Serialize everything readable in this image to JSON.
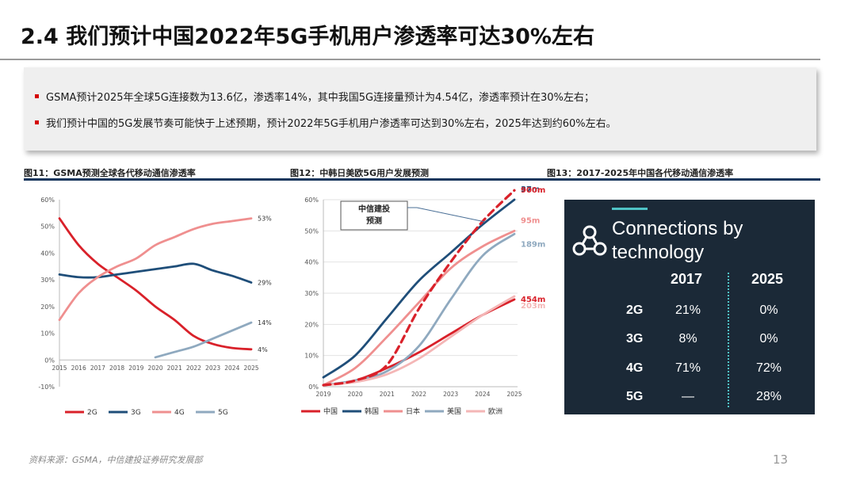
{
  "slide": {
    "title": "2.4  我们预计中国2022年5G手机用户渗透率可达30%左右",
    "bullets": [
      "GSMA预计2025年全球5G连接数为13.6亿，渗透率14%，其中我国5G连接量预计为4.54亿，渗透率预计在30%左右；",
      "我们预计中国的5G发展节奏可能快于上述预期，预计2022年5G手机用户渗透率可达到30%左右，2025年达到约60%左右。"
    ],
    "footer": "资料来源：GSMA，中信建投证券研究发展部",
    "page_number": "13"
  },
  "figures": {
    "fig11_title": "图11：GSMA预测全球各代移动通信渗透率",
    "fig12_title": "图12：中韩日美欧5G用户发展预测",
    "fig13_title": "图13：2017-2025年中国各代移动通信渗透率"
  },
  "chart_data": [
    {
      "type": "line",
      "x": [
        "2015",
        "2016",
        "2017",
        "2018",
        "2019",
        "2020",
        "2021",
        "2022",
        "2023",
        "2024",
        "2025"
      ],
      "ylim": [
        -10,
        60
      ],
      "ytick_labels": [
        "60%",
        "50%",
        "40%",
        "30%",
        "20%",
        "10%",
        "0%",
        "-10%"
      ],
      "series": [
        {
          "name": "2G",
          "color": "#d9212a",
          "values": [
            53,
            43,
            36,
            31,
            26,
            20,
            15,
            9,
            6,
            4.5,
            4
          ],
          "end_label": "4%"
        },
        {
          "name": "3G",
          "color": "#1f4e79",
          "values": [
            32,
            31,
            31,
            32,
            33,
            34,
            35,
            36,
            33.5,
            31.5,
            29
          ],
          "end_label": "29%"
        },
        {
          "name": "4G",
          "color": "#ef8f8f",
          "values": [
            15,
            25,
            31,
            35,
            38,
            43,
            46,
            49,
            51,
            52,
            53
          ],
          "end_label": "53%"
        },
        {
          "name": "5G",
          "color": "#8fa9bf",
          "values": [
            null,
            null,
            null,
            null,
            null,
            1,
            3,
            5,
            8,
            11,
            14
          ],
          "end_label": "14%"
        }
      ]
    },
    {
      "type": "line",
      "x": [
        "2019",
        "2020",
        "2021",
        "2022",
        "2023",
        "2024",
        "2025"
      ],
      "ylim": [
        0,
        60
      ],
      "ytick_labels": [
        "60%",
        "50%",
        "40%",
        "30%",
        "20%",
        "10%",
        "0%"
      ],
      "annotation": "中信建投\n预测",
      "series": [
        {
          "name": "中国",
          "color": "#d9212a",
          "values": [
            0.5,
            2,
            6,
            11,
            17,
            23,
            28
          ],
          "end_label": "454m"
        },
        {
          "name": "韩国",
          "color": "#1f4e79",
          "values": [
            3,
            10,
            22,
            34,
            43,
            52,
            60
          ],
          "end_label": "37m"
        },
        {
          "name": "日本",
          "color": "#ef8f8f",
          "values": [
            0.5,
            6,
            16,
            27,
            38,
            45,
            50
          ],
          "end_label": "95m"
        },
        {
          "name": "美国",
          "color": "#8fa9bf",
          "values": [
            0.5,
            2,
            5,
            13,
            28,
            42,
            49
          ],
          "end_label": "189m"
        },
        {
          "name": "欧洲",
          "color": "#f4b6b6",
          "values": [
            0.5,
            1.5,
            4,
            9,
            16,
            23,
            29
          ],
          "end_label": "203m"
        },
        {
          "name": "中信建投预测",
          "color": "#d9212a",
          "dashed": true,
          "values": [
            0.5,
            2,
            7,
            25,
            40,
            53,
            63
          ],
          "end_label": "900m"
        }
      ]
    },
    {
      "type": "table",
      "title": "Connections by technology",
      "columns": [
        "2017",
        "2025"
      ],
      "rows": [
        {
          "label": "2G",
          "values": [
            "21%",
            "0%"
          ]
        },
        {
          "label": "3G",
          "values": [
            "8%",
            "0%"
          ]
        },
        {
          "label": "4G",
          "values": [
            "71%",
            "72%"
          ]
        },
        {
          "label": "5G",
          "values": [
            "—",
            "28%"
          ]
        }
      ],
      "colors": {
        "background": "#1b2937",
        "accent": "#4fc3c6",
        "text": "#ffffff"
      }
    }
  ]
}
